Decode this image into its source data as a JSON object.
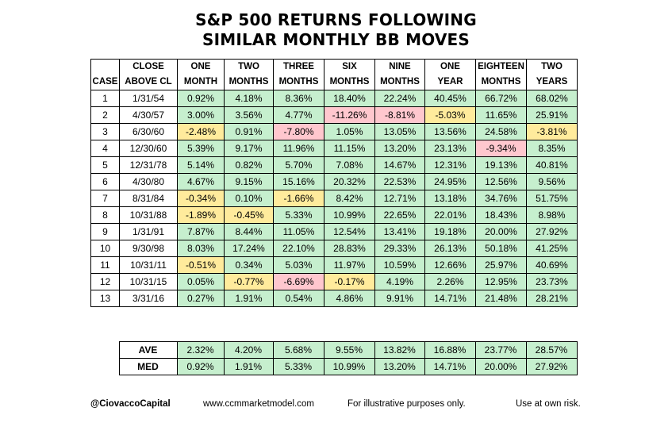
{
  "title_line1": "S&P 500 RETURNS FOLLOWING",
  "title_line2": "SIMILAR MONTHLY BB MOVES",
  "colors": {
    "positive": "#c6efce",
    "mild_negative": "#ffeb9c",
    "large_negative": "#ffc7ce"
  },
  "chart_data": {
    "type": "table",
    "title": "S&P 500 RETURNS FOLLOWING SIMILAR MONTHLY BB MOVES",
    "header_row1": [
      "",
      "CLOSE",
      "ONE",
      "TWO",
      "THREE",
      "SIX",
      "NINE",
      "ONE",
      "EIGHTEEN",
      "TWO"
    ],
    "header_row2": [
      "CASE",
      "ABOVE CL",
      "MONTH",
      "MONTHS",
      "MONTHS",
      "MONTHS",
      "MONTHS",
      "YEAR",
      "MONTHS",
      "YEARS"
    ],
    "rows": [
      [
        "1",
        "1/31/54",
        "0.92%",
        "4.18%",
        "8.36%",
        "18.40%",
        "22.24%",
        "40.45%",
        "66.72%",
        "68.02%"
      ],
      [
        "2",
        "4/30/57",
        "3.00%",
        "3.56%",
        "4.77%",
        "-11.26%",
        "-8.81%",
        "-5.03%",
        "11.65%",
        "25.91%"
      ],
      [
        "3",
        "6/30/60",
        "-2.48%",
        "0.91%",
        "-7.80%",
        "1.05%",
        "13.05%",
        "13.56%",
        "24.58%",
        "-3.81%"
      ],
      [
        "4",
        "12/30/60",
        "5.39%",
        "9.17%",
        "11.96%",
        "11.15%",
        "13.20%",
        "23.13%",
        "-9.34%",
        "8.35%"
      ],
      [
        "5",
        "12/31/78",
        "5.14%",
        "0.82%",
        "5.70%",
        "7.08%",
        "14.67%",
        "12.31%",
        "19.13%",
        "40.81%"
      ],
      [
        "6",
        "4/30/80",
        "4.67%",
        "9.15%",
        "15.16%",
        "20.32%",
        "22.53%",
        "24.95%",
        "12.56%",
        "9.56%"
      ],
      [
        "7",
        "8/31/84",
        "-0.34%",
        "0.10%",
        "-1.66%",
        "8.42%",
        "12.71%",
        "13.18%",
        "34.76%",
        "51.75%"
      ],
      [
        "8",
        "10/31/88",
        "-1.89%",
        "-0.45%",
        "5.33%",
        "10.99%",
        "22.65%",
        "22.01%",
        "18.43%",
        "8.98%"
      ],
      [
        "9",
        "1/31/91",
        "7.87%",
        "8.44%",
        "11.05%",
        "12.54%",
        "13.41%",
        "19.18%",
        "20.00%",
        "27.92%"
      ],
      [
        "10",
        "9/30/98",
        "8.03%",
        "17.24%",
        "22.10%",
        "28.83%",
        "29.33%",
        "26.13%",
        "50.18%",
        "41.25%"
      ],
      [
        "11",
        "10/31/11",
        "-0.51%",
        "0.34%",
        "5.03%",
        "11.97%",
        "10.59%",
        "12.66%",
        "25.97%",
        "40.69%"
      ],
      [
        "12",
        "10/31/15",
        "0.05%",
        "-0.77%",
        "-6.69%",
        "-0.17%",
        "4.19%",
        "2.26%",
        "12.95%",
        "23.73%"
      ],
      [
        "13",
        "3/31/16",
        "0.27%",
        "1.91%",
        "0.54%",
        "4.86%",
        "9.91%",
        "14.71%",
        "21.48%",
        "28.21%"
      ]
    ],
    "row_colors": [
      [
        "w",
        "w",
        "g",
        "g",
        "g",
        "g",
        "g",
        "g",
        "g",
        "g"
      ],
      [
        "w",
        "w",
        "g",
        "g",
        "g",
        "r",
        "r",
        "y",
        "g",
        "g"
      ],
      [
        "w",
        "w",
        "y",
        "g",
        "r",
        "g",
        "g",
        "g",
        "g",
        "y"
      ],
      [
        "w",
        "w",
        "g",
        "g",
        "g",
        "g",
        "g",
        "g",
        "r",
        "g"
      ],
      [
        "w",
        "w",
        "g",
        "g",
        "g",
        "g",
        "g",
        "g",
        "g",
        "g"
      ],
      [
        "w",
        "w",
        "g",
        "g",
        "g",
        "g",
        "g",
        "g",
        "g",
        "g"
      ],
      [
        "w",
        "w",
        "y",
        "g",
        "y",
        "g",
        "g",
        "g",
        "g",
        "g"
      ],
      [
        "w",
        "w",
        "y",
        "y",
        "g",
        "g",
        "g",
        "g",
        "g",
        "g"
      ],
      [
        "w",
        "w",
        "g",
        "g",
        "g",
        "g",
        "g",
        "g",
        "g",
        "g"
      ],
      [
        "w",
        "w",
        "g",
        "g",
        "g",
        "g",
        "g",
        "g",
        "g",
        "g"
      ],
      [
        "w",
        "w",
        "y",
        "g",
        "g",
        "g",
        "g",
        "g",
        "g",
        "g"
      ],
      [
        "w",
        "w",
        "g",
        "y",
        "r",
        "y",
        "g",
        "g",
        "g",
        "g"
      ],
      [
        "w",
        "w",
        "g",
        "g",
        "g",
        "g",
        "g",
        "g",
        "g",
        "g"
      ]
    ],
    "summary": [
      [
        "AVE",
        "2.32%",
        "4.20%",
        "5.68%",
        "9.55%",
        "13.82%",
        "16.88%",
        "23.77%",
        "28.57%"
      ],
      [
        "MED",
        "0.92%",
        "1.91%",
        "5.33%",
        "10.99%",
        "13.20%",
        "14.71%",
        "20.00%",
        "27.92%"
      ]
    ]
  },
  "footer": {
    "handle": "@CiovaccoCapital",
    "website": "www.ccmmarketmodel.com",
    "disclaimer1": "For illustrative purposes only.",
    "disclaimer2": "Use at own risk."
  }
}
